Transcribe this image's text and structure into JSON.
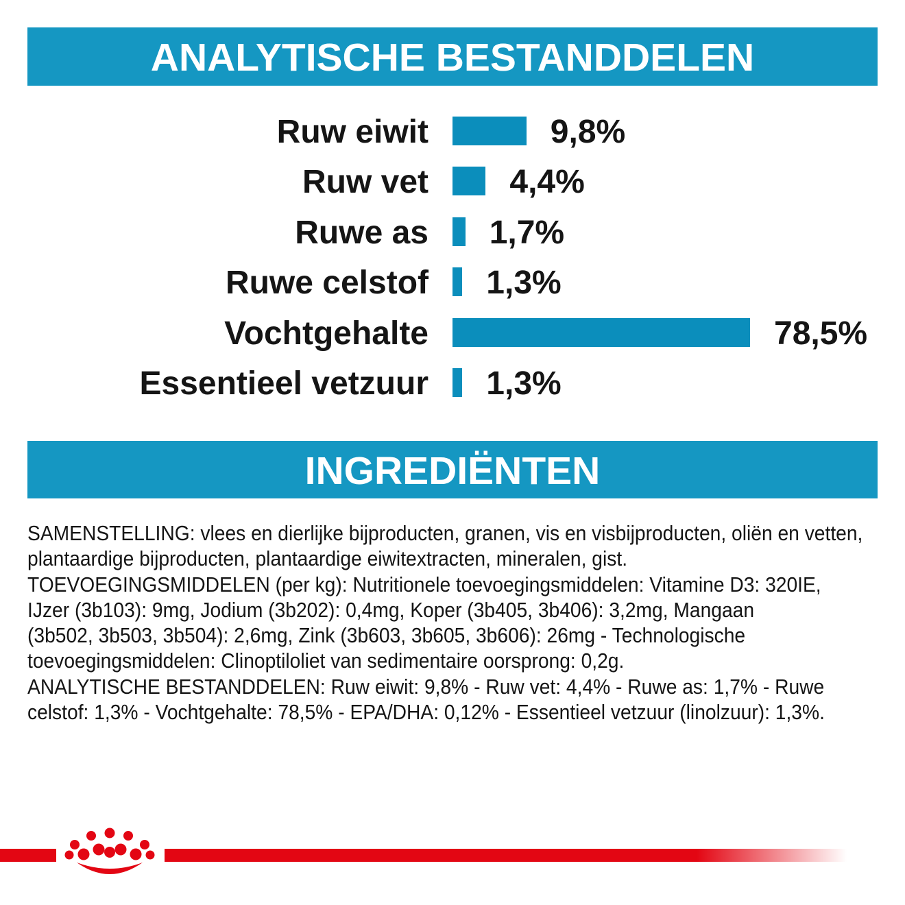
{
  "colors": {
    "banner": "#1597c2",
    "bar": "#0b8ebc",
    "banner_text": "#ffffff",
    "text": "#151515",
    "brand_red": "#e30613"
  },
  "chart_data": {
    "type": "bar",
    "orientation": "horizontal",
    "title": "ANALYTISCHE BESTANDDELEN",
    "categories": [
      "Ruw eiwit",
      "Ruw vet",
      "Ruwe as",
      "Ruwe celstof",
      "Vochtgehalte",
      "Essentieel vetzuur"
    ],
    "values": [
      9.8,
      4.4,
      1.7,
      1.3,
      78.5,
      1.3
    ],
    "value_labels": [
      "9,8%",
      "4,4%",
      "1,7%",
      "1,3%",
      "78,5%",
      "1,3%"
    ],
    "unit": "%",
    "grid": false,
    "axes_visible": false,
    "legend": "none"
  },
  "ingredients": {
    "title": "INGREDIËNTEN",
    "lines": [
      "SAMENSTELLING: vlees en dierlijke bijproducten, granen, vis en visbijproducten, oliën en vetten,",
      "plantaardige bijproducten, plantaardige eiwitextracten, mineralen, gist.",
      "TOEVOEGINGSMIDDELEN (per kg): Nutritionele toevoegingsmiddelen: Vitamine D3: 320IE,",
      "IJzer (3b103): 9mg, Jodium (3b202): 0,4mg, Koper (3b405, 3b406): 3,2mg, Mangaan",
      "(3b502, 3b503, 3b504): 2,6mg, Zink (3b603, 3b605, 3b606): 26mg - Technologische",
      "toevoegingsmiddelen: Clinoptiloliet van sedimentaire oorsprong: 0,2g.",
      "ANALYTISCHE BESTANDDELEN: Ruw eiwit: 9,8% - Ruw vet: 4,4% - Ruwe as: 1,7% - Ruwe",
      "celstof: 1,3% - Vochtgehalte: 78,5% - EPA/DHA: 0,12% - Essentieel vetzuur (linolzuur): 1,3%."
    ]
  },
  "footer": {
    "logo_icon": "royal-canin-crown-icon"
  }
}
